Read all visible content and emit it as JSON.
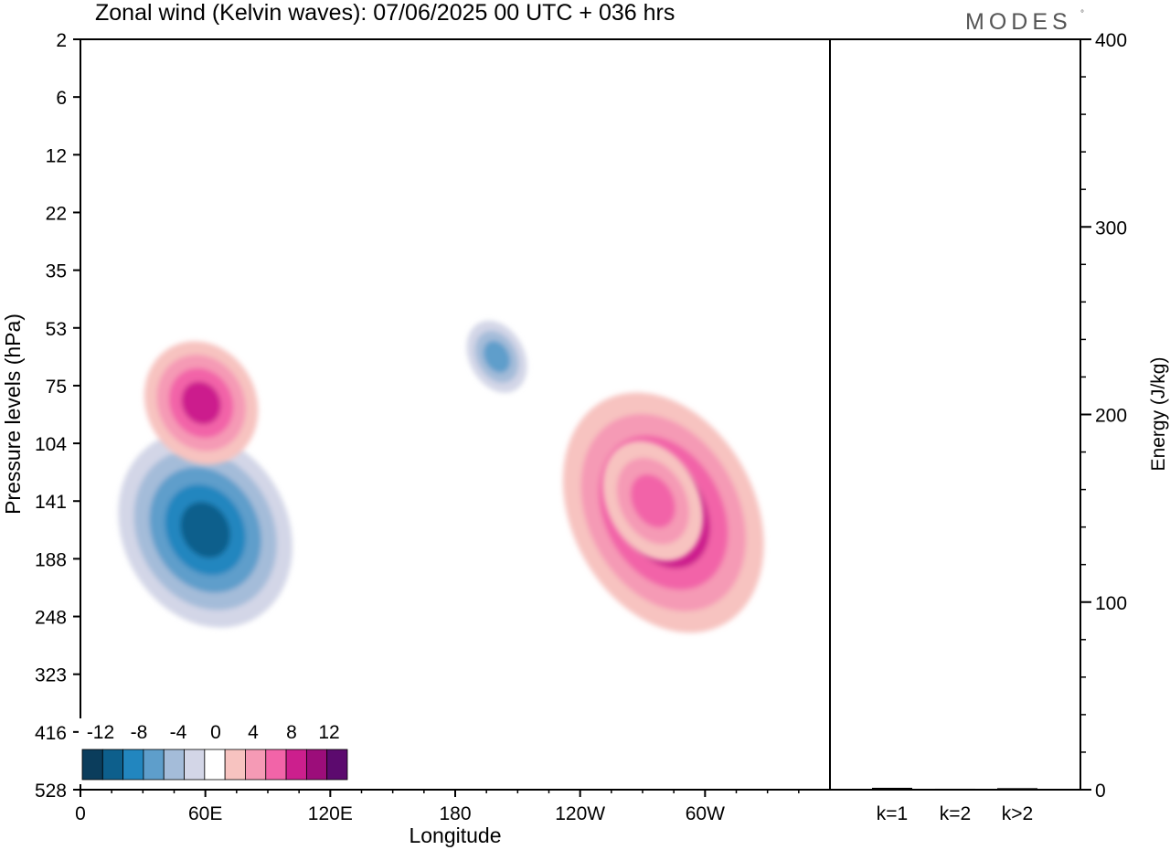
{
  "brand": {
    "text": "MODES",
    "mark": "°"
  },
  "colors": {
    "neg": [
      "#0b3d5c",
      "#0d5f8c",
      "#2286bf",
      "#5e9ecb",
      "#a4bcd9",
      "#d3d6e7"
    ],
    "zero": "#ffffff",
    "pos": [
      "#f7c3c0",
      "#f59ab5",
      "#f264a8",
      "#cc1f8d",
      "#9c0d7a",
      "#5c0a6e"
    ],
    "frame": "#000000"
  },
  "chart_data": [
    {
      "type": "heatmap",
      "title": "Zonal wind (Kelvin waves):  07/06/2025  00 UTC  + 036 hrs",
      "xlabel": "Longitude",
      "ylabel": "Pressure levels (hPa)",
      "x_ticks": [
        "0",
        "60E",
        "120E",
        "180",
        "120W",
        "60W"
      ],
      "x_tick_values": [
        0,
        60,
        120,
        180,
        240,
        300
      ],
      "xlim": [
        0,
        360
      ],
      "y_ticks": [
        "2",
        "6",
        "12",
        "22",
        "35",
        "53",
        "75",
        "104",
        "141",
        "188",
        "248",
        "323",
        "416",
        "528"
      ],
      "y_scale": "levels (evenly spaced, top=2 hPa)",
      "colorbar": {
        "labels": [
          "-12",
          "-8",
          "-4",
          "0",
          "4",
          "8",
          "12"
        ],
        "bounds": [
          -14,
          -12,
          -10,
          -8,
          -6,
          -4,
          -2,
          2,
          4,
          6,
          8,
          10,
          12,
          14
        ]
      },
      "features": [
        {
          "sign": "neg",
          "level": 5,
          "lon": 60,
          "lev": 8.5,
          "w": 18,
          "h": 0.8
        },
        {
          "sign": "pos",
          "level": 4,
          "lon": 58,
          "lev": 6.3,
          "w": 12,
          "h": 0.5
        },
        {
          "sign": "neg",
          "level": 3,
          "lon": 200,
          "lev": 5.5,
          "w": 6,
          "h": 0.3
        },
        {
          "sign": "pos",
          "level": 5,
          "lon": 280,
          "lev": 8.2,
          "w": 20,
          "h": 1.0
        },
        {
          "sign": "pos",
          "level": 3,
          "lon": 275,
          "lev": 8.0,
          "w": 10,
          "h": 0.5
        }
      ]
    },
    {
      "type": "bar",
      "ylabel": "Energy (J/kg)",
      "categories": [
        "k=1",
        "k=2",
        "k>2"
      ],
      "values": [
        1.0,
        0.5,
        0.8
      ],
      "ylim": [
        0,
        400
      ],
      "y_ticks": [
        "0",
        "100",
        "200",
        "300",
        "400"
      ]
    }
  ]
}
